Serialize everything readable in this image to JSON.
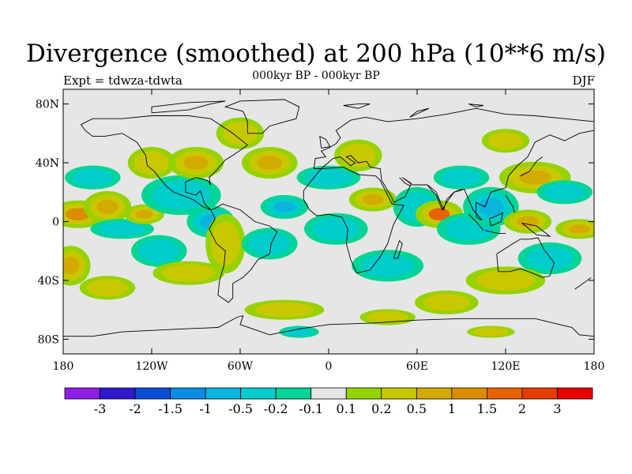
{
  "header": {
    "title": "Divergence (smoothed) at 200 hPa (10**6 m/s)",
    "subtitle": "000kyr BP - 000kyr BP",
    "left_label": "Expt = tdwza-tdwta",
    "right_label": "DJF"
  },
  "map_axes": {
    "lat_ticks": [
      {
        "value": 80,
        "label": "80N"
      },
      {
        "value": 40,
        "label": "40N"
      },
      {
        "value": 0,
        "label": "0"
      },
      {
        "value": -40,
        "label": "40S"
      },
      {
        "value": -80,
        "label": "80S"
      }
    ],
    "lon_ticks": [
      {
        "value": -180,
        "label": "180"
      },
      {
        "value": -120,
        "label": "120W"
      },
      {
        "value": -60,
        "label": "60W"
      },
      {
        "value": 0,
        "label": "0"
      },
      {
        "value": 60,
        "label": "60E"
      },
      {
        "value": 120,
        "label": "120E"
      },
      {
        "value": 180,
        "label": "180"
      }
    ],
    "lat_range": [
      -90,
      90
    ],
    "lon_range": [
      -180,
      180
    ],
    "background_color": "#e6e6e6"
  },
  "colorbar": {
    "colors": [
      "#8c1ee6",
      "#2e19cf",
      "#0a50d6",
      "#0a8ce6",
      "#0ab4dc",
      "#00cccc",
      "#00d496",
      "#e6e6e6",
      "#96d200",
      "#c8c800",
      "#d2aa00",
      "#dc8c00",
      "#e66400",
      "#e63c00",
      "#e60000"
    ],
    "labels": [
      "-3",
      "-2",
      "-1.5",
      "-1",
      "-0.5",
      "-0.2",
      "-0.1",
      "0.1",
      "0.2",
      "0.5",
      "1",
      "1.5",
      "2",
      "3"
    ]
  },
  "fields": [
    {
      "lon": -170,
      "lat": 5,
      "a": 14,
      "b": 7,
      "level": 1.2
    },
    {
      "lon": -160,
      "lat": 30,
      "a": 14,
      "b": 6,
      "level": -0.4
    },
    {
      "lon": -175,
      "lat": -30,
      "a": 10,
      "b": 10,
      "level": 0.6
    },
    {
      "lon": -150,
      "lat": 10,
      "a": 12,
      "b": 8,
      "level": 0.5
    },
    {
      "lon": -140,
      "lat": -5,
      "a": 16,
      "b": 5,
      "level": -0.4
    },
    {
      "lon": -125,
      "lat": 5,
      "a": 10,
      "b": 5,
      "level": 0.8
    },
    {
      "lon": -120,
      "lat": 40,
      "a": 12,
      "b": 8,
      "level": 0.4
    },
    {
      "lon": -115,
      "lat": -20,
      "a": 14,
      "b": 8,
      "level": -0.3
    },
    {
      "lon": -100,
      "lat": 18,
      "a": 20,
      "b": 10,
      "level": -0.5
    },
    {
      "lon": -90,
      "lat": 40,
      "a": 14,
      "b": 8,
      "level": 0.9
    },
    {
      "lon": -80,
      "lat": 0,
      "a": 12,
      "b": 8,
      "level": -0.8
    },
    {
      "lon": -70,
      "lat": -15,
      "a": 10,
      "b": 15,
      "level": 0.4
    },
    {
      "lon": -95,
      "lat": -35,
      "a": 18,
      "b": 6,
      "level": 0.4
    },
    {
      "lon": -150,
      "lat": -45,
      "a": 14,
      "b": 6,
      "level": 0.4
    },
    {
      "lon": -60,
      "lat": 60,
      "a": 12,
      "b": 8,
      "level": 0.3
    },
    {
      "lon": -40,
      "lat": 40,
      "a": 14,
      "b": 8,
      "level": 0.5
    },
    {
      "lon": -30,
      "lat": 10,
      "a": 12,
      "b": 6,
      "level": -0.6
    },
    {
      "lon": -40,
      "lat": -15,
      "a": 14,
      "b": 8,
      "level": -0.4
    },
    {
      "lon": -30,
      "lat": -60,
      "a": 20,
      "b": 5,
      "level": 0.3
    },
    {
      "lon": 0,
      "lat": 30,
      "a": 16,
      "b": 6,
      "level": -0.4
    },
    {
      "lon": 5,
      "lat": -5,
      "a": 16,
      "b": 8,
      "level": -0.5
    },
    {
      "lon": 20,
      "lat": 45,
      "a": 12,
      "b": 8,
      "level": 0.3
    },
    {
      "lon": 30,
      "lat": 15,
      "a": 12,
      "b": 6,
      "level": 0.6
    },
    {
      "lon": 40,
      "lat": -30,
      "a": 18,
      "b": 8,
      "level": -0.5
    },
    {
      "lon": 60,
      "lat": 10,
      "a": 12,
      "b": 10,
      "level": -0.4
    },
    {
      "lon": 75,
      "lat": 5,
      "a": 12,
      "b": 7,
      "level": 1.6
    },
    {
      "lon": 90,
      "lat": 30,
      "a": 14,
      "b": 6,
      "level": -0.4
    },
    {
      "lon": 95,
      "lat": -5,
      "a": 16,
      "b": 8,
      "level": -0.4
    },
    {
      "lon": 110,
      "lat": 10,
      "a": 14,
      "b": 10,
      "level": -0.8
    },
    {
      "lon": 135,
      "lat": 0,
      "a": 12,
      "b": 6,
      "level": 0.9
    },
    {
      "lon": 140,
      "lat": 30,
      "a": 18,
      "b": 8,
      "level": 0.5
    },
    {
      "lon": 160,
      "lat": 20,
      "a": 14,
      "b": 6,
      "level": -0.5
    },
    {
      "lon": 150,
      "lat": -25,
      "a": 16,
      "b": 8,
      "level": -0.4
    },
    {
      "lon": 170,
      "lat": -5,
      "a": 12,
      "b": 5,
      "level": 0.5
    },
    {
      "lon": 120,
      "lat": 55,
      "a": 12,
      "b": 6,
      "level": 0.3
    },
    {
      "lon": 120,
      "lat": -40,
      "a": 20,
      "b": 7,
      "level": 0.4
    },
    {
      "lon": 80,
      "lat": -55,
      "a": 16,
      "b": 6,
      "level": 0.3
    },
    {
      "lon": 40,
      "lat": -65,
      "a": 14,
      "b": 4,
      "level": 0.3
    },
    {
      "lon": 110,
      "lat": -75,
      "a": 12,
      "b": 3,
      "level": 0.3
    },
    {
      "lon": -20,
      "lat": -75,
      "a": 10,
      "b": 3,
      "level": -0.3
    }
  ]
}
